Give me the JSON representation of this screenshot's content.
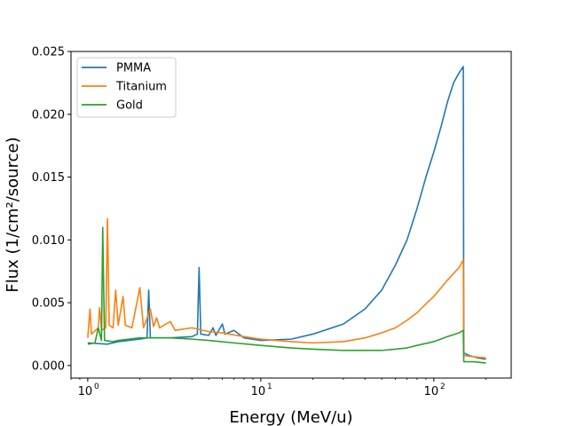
{
  "chart_data": {
    "type": "line",
    "xlabel": "Energy (MeV/u)",
    "ylabel": "Flux (1/cm²/source)",
    "xscale": "log",
    "xlim": [
      0.8,
      280
    ],
    "ylim": [
      -0.001,
      0.025
    ],
    "grid": false,
    "legend_position": "top-left",
    "x_ticks": [
      {
        "value": 1,
        "label": "10",
        "exp": "0"
      },
      {
        "value": 10,
        "label": "10",
        "exp": "1"
      },
      {
        "value": 100,
        "label": "10",
        "exp": "2"
      }
    ],
    "y_ticks": [
      {
        "value": 0.0,
        "label": "0.000"
      },
      {
        "value": 0.005,
        "label": "0.005"
      },
      {
        "value": 0.01,
        "label": "0.010"
      },
      {
        "value": 0.015,
        "label": "0.015"
      },
      {
        "value": 0.02,
        "label": "0.020"
      },
      {
        "value": 0.025,
        "label": "0.025"
      }
    ],
    "series": [
      {
        "name": "PMMA",
        "color": "#1f77b4",
        "points": [
          [
            1.0,
            0.0018
          ],
          [
            1.3,
            0.0017
          ],
          [
            1.5,
            0.0019
          ],
          [
            2.0,
            0.0021
          ],
          [
            2.2,
            0.0022
          ],
          [
            2.25,
            0.006
          ],
          [
            2.3,
            0.0022
          ],
          [
            3.0,
            0.0022
          ],
          [
            4.0,
            0.0023
          ],
          [
            4.3,
            0.0025
          ],
          [
            4.4,
            0.0078
          ],
          [
            4.5,
            0.0025
          ],
          [
            5.0,
            0.0024
          ],
          [
            5.3,
            0.003
          ],
          [
            5.5,
            0.0024
          ],
          [
            6.0,
            0.0033
          ],
          [
            6.2,
            0.0025
          ],
          [
            7.0,
            0.0028
          ],
          [
            8.0,
            0.0022
          ],
          [
            10.0,
            0.002
          ],
          [
            15.0,
            0.0021
          ],
          [
            20.0,
            0.0025
          ],
          [
            30.0,
            0.0033
          ],
          [
            40.0,
            0.0045
          ],
          [
            50.0,
            0.006
          ],
          [
            60.0,
            0.008
          ],
          [
            70.0,
            0.01
          ],
          [
            80.0,
            0.0125
          ],
          [
            90.0,
            0.015
          ],
          [
            100.0,
            0.017
          ],
          [
            110.0,
            0.019
          ],
          [
            120.0,
            0.021
          ],
          [
            130.0,
            0.0225
          ],
          [
            140.0,
            0.0233
          ],
          [
            148.0,
            0.0238
          ],
          [
            149.0,
            0.001
          ],
          [
            160.0,
            0.0008
          ],
          [
            180.0,
            0.0006
          ],
          [
            200.0,
            0.0005
          ]
        ]
      },
      {
        "name": "Titanium",
        "color": "#ff7f0e",
        "points": [
          [
            1.0,
            0.0022
          ],
          [
            1.03,
            0.0045
          ],
          [
            1.05,
            0.0025
          ],
          [
            1.15,
            0.003
          ],
          [
            1.17,
            0.0046
          ],
          [
            1.2,
            0.0028
          ],
          [
            1.27,
            0.003
          ],
          [
            1.3,
            0.0117
          ],
          [
            1.33,
            0.0032
          ],
          [
            1.4,
            0.003
          ],
          [
            1.45,
            0.006
          ],
          [
            1.5,
            0.0032
          ],
          [
            1.6,
            0.0055
          ],
          [
            1.65,
            0.0032
          ],
          [
            1.8,
            0.003
          ],
          [
            2.0,
            0.0062
          ],
          [
            2.1,
            0.003
          ],
          [
            2.3,
            0.0045
          ],
          [
            2.4,
            0.0031
          ],
          [
            2.5,
            0.0038
          ],
          [
            2.6,
            0.003
          ],
          [
            3.0,
            0.0035
          ],
          [
            3.2,
            0.0028
          ],
          [
            4.0,
            0.003
          ],
          [
            5.0,
            0.0027
          ],
          [
            6.0,
            0.0026
          ],
          [
            8.0,
            0.0023
          ],
          [
            10.0,
            0.0021
          ],
          [
            15.0,
            0.0019
          ],
          [
            20.0,
            0.0018
          ],
          [
            30.0,
            0.0019
          ],
          [
            40.0,
            0.0022
          ],
          [
            50.0,
            0.0026
          ],
          [
            60.0,
            0.003
          ],
          [
            70.0,
            0.0036
          ],
          [
            80.0,
            0.0042
          ],
          [
            90.0,
            0.0049
          ],
          [
            100.0,
            0.0055
          ],
          [
            120.0,
            0.0068
          ],
          [
            140.0,
            0.0078
          ],
          [
            148.0,
            0.0084
          ],
          [
            149.0,
            0.0008
          ],
          [
            170.0,
            0.0007
          ],
          [
            200.0,
            0.0006
          ]
        ]
      },
      {
        "name": "Gold",
        "color": "#2ca02c",
        "points": [
          [
            1.0,
            0.0017
          ],
          [
            1.1,
            0.0018
          ],
          [
            1.15,
            0.003
          ],
          [
            1.2,
            0.002
          ],
          [
            1.22,
            0.011
          ],
          [
            1.25,
            0.002
          ],
          [
            1.4,
            0.0019
          ],
          [
            1.5,
            0.002
          ],
          [
            2.0,
            0.0022
          ],
          [
            3.0,
            0.0022
          ],
          [
            4.0,
            0.0021
          ],
          [
            5.0,
            0.002
          ],
          [
            7.0,
            0.0018
          ],
          [
            10.0,
            0.0016
          ],
          [
            15.0,
            0.0014
          ],
          [
            20.0,
            0.0013
          ],
          [
            30.0,
            0.0012
          ],
          [
            40.0,
            0.0012
          ],
          [
            50.0,
            0.0012
          ],
          [
            60.0,
            0.0013
          ],
          [
            70.0,
            0.0014
          ],
          [
            80.0,
            0.0016
          ],
          [
            100.0,
            0.0019
          ],
          [
            120.0,
            0.0023
          ],
          [
            140.0,
            0.0026
          ],
          [
            148.0,
            0.0028
          ],
          [
            149.0,
            0.0003
          ],
          [
            170.0,
            0.0003
          ],
          [
            200.0,
            0.0002
          ]
        ]
      }
    ]
  }
}
